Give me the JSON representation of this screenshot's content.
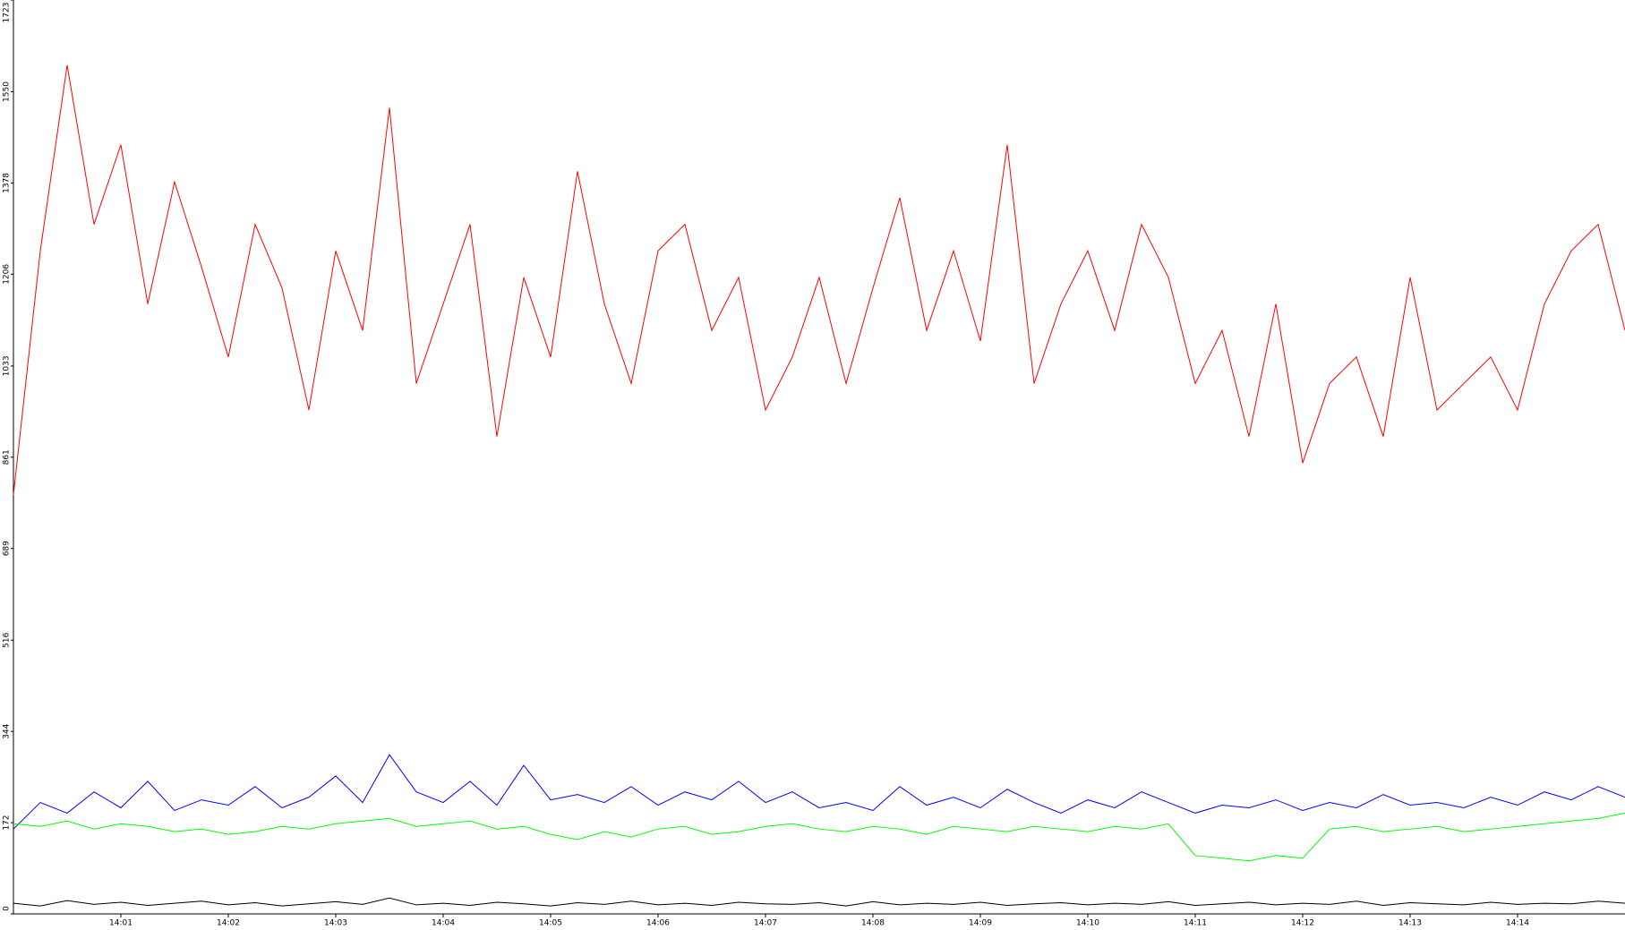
{
  "chart_data": {
    "type": "line",
    "x": [
      0,
      0.25,
      0.5,
      0.75,
      1,
      1.25,
      1.5,
      1.75,
      2,
      2.25,
      2.5,
      2.75,
      3,
      3.25,
      3.5,
      3.75,
      4,
      4.25,
      4.5,
      4.75,
      5,
      5.25,
      5.5,
      5.75,
      6,
      6.25,
      6.5,
      6.75,
      7,
      7.25,
      7.5,
      7.75,
      8,
      8.25,
      8.5,
      8.75,
      9,
      9.25,
      9.5,
      9.75,
      10,
      10.25,
      10.5,
      10.75,
      11,
      11.25,
      11.5,
      11.75,
      12,
      12.25,
      12.5,
      12.75,
      13,
      13.25,
      13.5,
      13.75,
      14,
      14.25,
      14.5,
      14.75,
      15
    ],
    "series": [
      {
        "color": "#ff0000",
        "values": [
          790,
          1250,
          1600,
          1300,
          1450,
          1150,
          1380,
          1220,
          1050,
          1300,
          1180,
          950,
          1250,
          1100,
          1520,
          1000,
          1150,
          1300,
          900,
          1200,
          1050,
          1400,
          1150,
          1000,
          1250,
          1300,
          1100,
          1200,
          950,
          1050,
          1200,
          1000,
          1180,
          1350,
          1100,
          1250,
          1080,
          1450,
          1000,
          1150,
          1250,
          1100,
          1300,
          1200,
          1000,
          1100,
          900,
          1150,
          850,
          1000,
          1050,
          900,
          1200,
          950,
          1000,
          1050,
          950,
          1150,
          1250,
          1300,
          1100
        ]
      },
      {
        "color": "#0000ff",
        "values": [
          160,
          210,
          190,
          230,
          200,
          250,
          195,
          215,
          205,
          240,
          200,
          220,
          260,
          210,
          300,
          230,
          210,
          250,
          205,
          280,
          215,
          225,
          210,
          240,
          205,
          230,
          215,
          250,
          210,
          230,
          200,
          210,
          195,
          240,
          205,
          220,
          200,
          235,
          210,
          190,
          215,
          200,
          230,
          210,
          190,
          205,
          200,
          215,
          195,
          210,
          200,
          225,
          205,
          210,
          200,
          220,
          205,
          230,
          215,
          240,
          220
        ]
      },
      {
        "color": "#00ff00",
        "values": [
          170,
          165,
          175,
          160,
          170,
          165,
          155,
          160,
          150,
          155,
          165,
          160,
          170,
          175,
          180,
          165,
          170,
          175,
          160,
          165,
          150,
          140,
          155,
          145,
          160,
          165,
          150,
          155,
          165,
          170,
          160,
          155,
          165,
          160,
          150,
          165,
          160,
          155,
          165,
          160,
          155,
          165,
          160,
          170,
          110,
          105,
          100,
          110,
          105,
          160,
          165,
          155,
          160,
          165,
          155,
          160,
          165,
          170,
          175,
          180,
          190
        ]
      },
      {
        "color": "#000000",
        "values": [
          20,
          15,
          25,
          18,
          22,
          16,
          20,
          24,
          17,
          21,
          15,
          19,
          23,
          18,
          30,
          17,
          20,
          16,
          22,
          19,
          15,
          21,
          18,
          24,
          17,
          20,
          16,
          22,
          19,
          18,
          21,
          15,
          23,
          17,
          20,
          18,
          22,
          16,
          19,
          21,
          17,
          20,
          18,
          23,
          16,
          19,
          22,
          17,
          20,
          18,
          24,
          16,
          21,
          19,
          17,
          22,
          18,
          20,
          19,
          24,
          20
        ]
      }
    ],
    "xlim": [
      0,
      15
    ],
    "xticks": [
      {
        "value": 1,
        "label": "14:01"
      },
      {
        "value": 2,
        "label": "14:02"
      },
      {
        "value": 3,
        "label": "14:03"
      },
      {
        "value": 4,
        "label": "14:04"
      },
      {
        "value": 5,
        "label": "14:05"
      },
      {
        "value": 6,
        "label": "14:06"
      },
      {
        "value": 7,
        "label": "14:07"
      },
      {
        "value": 8,
        "label": "14:08"
      },
      {
        "value": 9,
        "label": "14:09"
      },
      {
        "value": 10,
        "label": "14:10"
      },
      {
        "value": 11,
        "label": "14:11"
      },
      {
        "value": 12,
        "label": "14:12"
      },
      {
        "value": 13,
        "label": "14:13"
      },
      {
        "value": 14,
        "label": "14:14"
      }
    ],
    "ylim": [
      0,
      1723
    ],
    "yticks": [
      0,
      172,
      344,
      516,
      689,
      861,
      1033,
      1206,
      1378,
      1550,
      1723
    ]
  }
}
